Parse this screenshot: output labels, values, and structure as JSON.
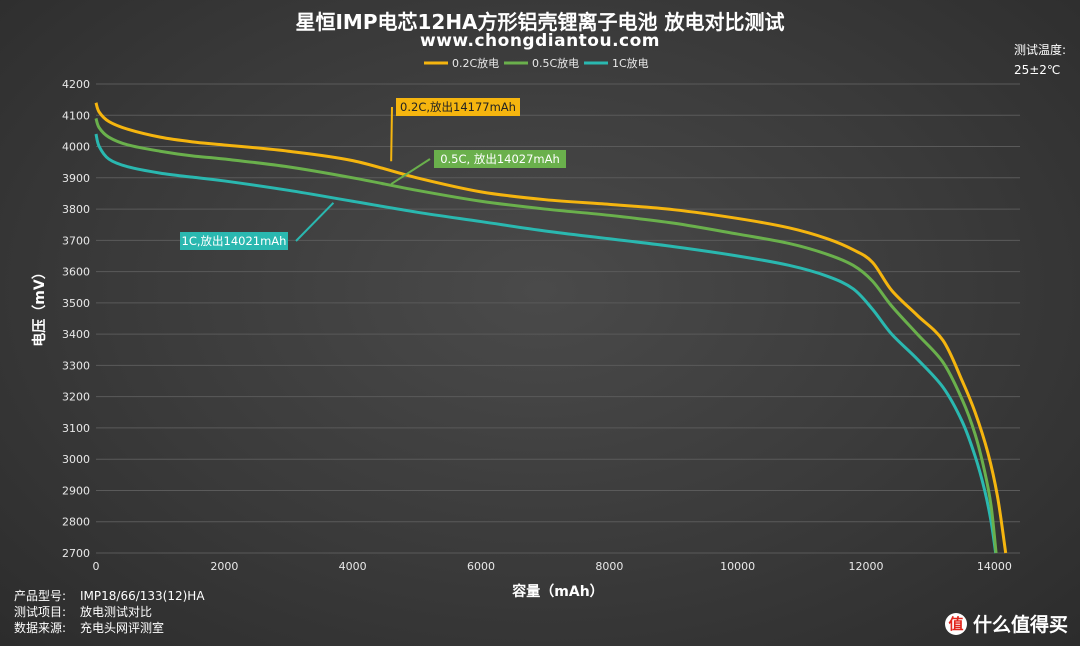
{
  "header": {
    "title": "星恒IMP电芯12HA方形铝壳锂离子电池 放电对比测试",
    "subtitle": "www.chongdiantou.com"
  },
  "test_temperature": {
    "label": "测试温度:",
    "value": "25±2℃"
  },
  "info": [
    {
      "key": "产品型号:",
      "value": "IMP18/66/133(12)HA"
    },
    {
      "key": "测试项目:",
      "value": "放电测试对比"
    },
    {
      "key": "数据来源:",
      "value": "充电头网评测室"
    }
  ],
  "watermark": {
    "logo_char": "值",
    "text": "什么值得买"
  },
  "colors": {
    "series_02c": "#f5b50f",
    "series_05c": "#6ab04c",
    "series_1c": "#2ab8b0",
    "grid": "#5a5a5a",
    "axis_text": "#e8e8e8"
  },
  "chart_data": {
    "type": "line",
    "title": "星恒IMP电芯12HA方形铝壳锂离子电池 放电对比测试",
    "xlabel": "容量（mAh）",
    "ylabel": "电压（mV）",
    "xlim": [
      0,
      14400
    ],
    "ylim": [
      2700,
      4200
    ],
    "xticks": [
      0,
      2000,
      4000,
      6000,
      8000,
      10000,
      12000,
      14000
    ],
    "yticks": [
      2700,
      2800,
      2900,
      3000,
      3100,
      3200,
      3300,
      3400,
      3500,
      3600,
      3700,
      3800,
      3900,
      4000,
      4100,
      4200
    ],
    "grid": true,
    "legend_position": "top-center",
    "series": [
      {
        "name": "0.2C放电",
        "color": "#f5b50f",
        "annotation": "0.2C,放出14177mAh",
        "x": [
          0,
          50,
          200,
          500,
          1000,
          1500,
          2000,
          3000,
          4000,
          5000,
          6000,
          7000,
          8000,
          9000,
          10000,
          10800,
          11400,
          11800,
          12100,
          12400,
          12800,
          13200,
          13500,
          13700,
          13900,
          14050,
          14177
        ],
        "y": [
          4140,
          4110,
          4080,
          4055,
          4030,
          4015,
          4005,
          3985,
          3955,
          3900,
          3855,
          3830,
          3815,
          3798,
          3770,
          3740,
          3705,
          3670,
          3630,
          3540,
          3460,
          3380,
          3250,
          3150,
          3020,
          2880,
          2700
        ]
      },
      {
        "name": "0.5C放电",
        "color": "#6ab04c",
        "annotation": "0.5C, 放出14027mAh",
        "x": [
          0,
          50,
          200,
          500,
          1000,
          1500,
          2000,
          3000,
          4000,
          5000,
          6000,
          7000,
          8000,
          9000,
          10000,
          10800,
          11400,
          11800,
          12100,
          12400,
          12800,
          13200,
          13500,
          13700,
          13850,
          13950,
          14027
        ],
        "y": [
          4090,
          4060,
          4030,
          4005,
          3985,
          3970,
          3960,
          3935,
          3900,
          3860,
          3825,
          3800,
          3780,
          3755,
          3720,
          3690,
          3655,
          3620,
          3570,
          3490,
          3400,
          3310,
          3190,
          3080,
          2960,
          2850,
          2700
        ]
      },
      {
        "name": "1C放电",
        "color": "#2ab8b0",
        "annotation": "1C,放出14021mAh",
        "x": [
          0,
          50,
          200,
          500,
          1000,
          1500,
          2000,
          3000,
          4000,
          5000,
          6000,
          7000,
          8000,
          9000,
          10000,
          10800,
          11400,
          11800,
          12100,
          12400,
          12800,
          13200,
          13500,
          13700,
          13850,
          13950,
          14021
        ],
        "y": [
          4040,
          4000,
          3960,
          3935,
          3915,
          3902,
          3890,
          3860,
          3825,
          3790,
          3760,
          3730,
          3705,
          3680,
          3650,
          3620,
          3585,
          3545,
          3480,
          3400,
          3320,
          3230,
          3120,
          3010,
          2900,
          2800,
          2700
        ]
      }
    ]
  }
}
